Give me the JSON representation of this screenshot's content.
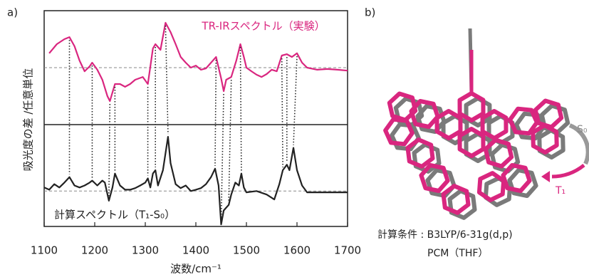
{
  "panel_a_label": "a)",
  "panel_b_label": "b)",
  "ylabel": "吸光度の差 /任意単位",
  "chart_data": [
    {
      "type": "line",
      "label": "TR-IRスペクトル（実験）",
      "xlim": [
        1100,
        1700
      ],
      "ylim": [
        -2.5,
        2.5
      ],
      "baseline": 0,
      "x": [
        1110,
        1125,
        1140,
        1150,
        1160,
        1170,
        1180,
        1190,
        1195,
        1205,
        1215,
        1225,
        1230,
        1240,
        1250,
        1260,
        1270,
        1280,
        1295,
        1305,
        1315,
        1320,
        1330,
        1340,
        1350,
        1360,
        1370,
        1380,
        1390,
        1400,
        1410,
        1420,
        1430,
        1440,
        1445,
        1450,
        1455,
        1460,
        1470,
        1480,
        1488,
        1495,
        1500,
        1510,
        1520,
        1530,
        1540,
        1550,
        1560,
        1570,
        1580,
        1590,
        1600,
        1610,
        1620,
        1640,
        1660,
        1680,
        1700
      ],
      "series": [
        {
          "color": "#d9267f",
          "values": [
            0.63,
            1.03,
            1.25,
            1.34,
            0.94,
            0.31,
            -0.16,
            0.06,
            0.22,
            -0.09,
            -0.53,
            -1.25,
            -1.47,
            -0.72,
            -0.72,
            -0.84,
            -0.72,
            -0.53,
            -0.41,
            -0.72,
            0.84,
            1.03,
            0.78,
            1.97,
            1.56,
            1.03,
            0.47,
            0.22,
            0,
            0.09,
            -0.09,
            -0.03,
            0.22,
            0.47,
            0,
            -0.47,
            -1.03,
            -0.53,
            -0.41,
            0.31,
            1.03,
            0.47,
            0,
            -0.16,
            -0.31,
            -0.41,
            -0.28,
            -0.09,
            -0.16,
            0.53,
            0.59,
            0.47,
            0.63,
            0.22,
            0,
            -0.09,
            -0.06,
            -0.09,
            -0.13
          ]
        }
      ]
    },
    {
      "type": "line",
      "label": "計算スペクトル（T₁-S₀）",
      "xlim": [
        1100,
        1700
      ],
      "ylim": [
        -1.6,
        3
      ],
      "baseline": 0,
      "xticks": [
        1100,
        1200,
        1300,
        1400,
        1500,
        1600,
        1700
      ],
      "xlabel": "波数/cm⁻¹",
      "x": [
        1100,
        1110,
        1120,
        1130,
        1140,
        1150,
        1160,
        1170,
        1180,
        1190,
        1195,
        1205,
        1215,
        1220,
        1228,
        1235,
        1240,
        1250,
        1260,
        1270,
        1280,
        1290,
        1300,
        1305,
        1310,
        1315,
        1320,
        1325,
        1335,
        1345,
        1350,
        1360,
        1370,
        1380,
        1390,
        1400,
        1410,
        1420,
        1430,
        1438,
        1445,
        1450,
        1455,
        1460,
        1465,
        1470,
        1478,
        1485,
        1490,
        1495,
        1500,
        1520,
        1540,
        1555,
        1565,
        1572,
        1580,
        1585,
        1593,
        1600,
        1610,
        1620,
        1640,
        1700
      ],
      "series": [
        {
          "color": "#222222",
          "values": [
            0.16,
            0.06,
            0.31,
            0.16,
            0.38,
            0.63,
            0.25,
            0.16,
            0.25,
            0.38,
            0.47,
            0.25,
            0.47,
            0.38,
            -0.44,
            0.16,
            0.79,
            0.25,
            0.06,
            0.06,
            0.13,
            0.25,
            0.38,
            0.57,
            0.16,
            0.79,
            0.94,
            0.25,
            0.94,
            2.45,
            1.26,
            0.31,
            0.13,
            0.25,
            0,
            0.06,
            0.13,
            0.31,
            0.63,
            1.01,
            0.25,
            -1.51,
            -0.88,
            -0.75,
            -0.63,
            -0.16,
            0.38,
            0.25,
            0.79,
            0.16,
            -0.06,
            0,
            -0.16,
            -0.38,
            0.31,
            0.94,
            1.19,
            0.94,
            1.95,
            0.94,
            0.25,
            -0.06,
            -0.06,
            -0.06
          ]
        }
      ]
    }
  ],
  "peak_links": [
    [
      1150,
      1150
    ],
    [
      1195,
      1195
    ],
    [
      1230,
      1228
    ],
    [
      1240,
      1240
    ],
    [
      1305,
      1305
    ],
    [
      1320,
      1320
    ],
    [
      1340,
      1345
    ],
    [
      1440,
      1438
    ],
    [
      1455,
      1450
    ],
    [
      1470,
      1465
    ],
    [
      1488,
      1490
    ],
    [
      1570,
      1572
    ],
    [
      1580,
      1580
    ],
    [
      1600,
      1593
    ]
  ],
  "panel_b": {
    "conditions": [
      "計算条件 : B3LYP/6-31g(d,p)",
      "PCM（THF）"
    ],
    "state_labels": [
      "S₀",
      "T₁"
    ]
  }
}
